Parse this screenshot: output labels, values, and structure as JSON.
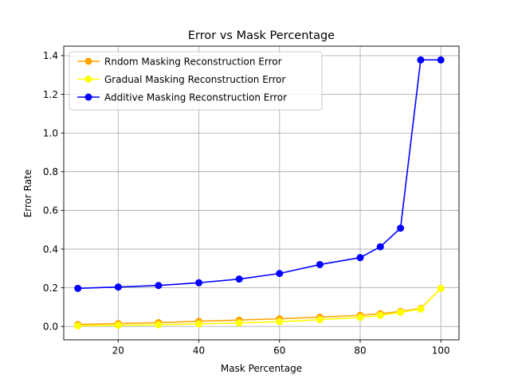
{
  "chart_data": {
    "type": "line",
    "title": "Error vs Mask Percentage",
    "xlabel": "Mask Percentage",
    "ylabel": "Error Rate",
    "xlim": [
      6.5,
      104.5
    ],
    "ylim": [
      -0.069,
      1.449
    ],
    "xticks": [
      20,
      40,
      60,
      80,
      100
    ],
    "yticks": [
      0.0,
      0.2,
      0.4,
      0.6,
      0.8,
      1.0,
      1.2,
      1.4
    ],
    "xtick_labels": [
      "20",
      "40",
      "60",
      "80",
      "100"
    ],
    "ytick_labels": [
      "0.0",
      "0.2",
      "0.4",
      "0.6",
      "0.8",
      "1.0",
      "1.2",
      "1.4"
    ],
    "grid": true,
    "legend_position": "top-left",
    "x": [
      10,
      20,
      30,
      40,
      50,
      60,
      70,
      80,
      85,
      90,
      95,
      100
    ],
    "series": [
      {
        "name": "Rndom Masking Reconstruction Error",
        "color": "#ffa500",
        "marker": "circle",
        "values": [
          0.01,
          0.015,
          0.02,
          0.027,
          0.033,
          0.04,
          0.048,
          0.058,
          0.066,
          0.078,
          0.093,
          0.197
        ]
      },
      {
        "name": "Gradual Masking Reconstruction Error",
        "color": "#ffff00",
        "marker": "circle",
        "values": [
          0.003,
          0.006,
          0.009,
          0.013,
          0.018,
          0.025,
          0.035,
          0.047,
          0.057,
          0.073,
          0.09,
          0.197
        ]
      },
      {
        "name": "Additive Masking Reconstruction Error",
        "color": "#0000ff",
        "marker": "circle",
        "values": [
          0.197,
          0.204,
          0.212,
          0.226,
          0.245,
          0.274,
          0.32,
          0.356,
          0.412,
          0.508,
          1.378,
          1.378
        ]
      }
    ]
  }
}
